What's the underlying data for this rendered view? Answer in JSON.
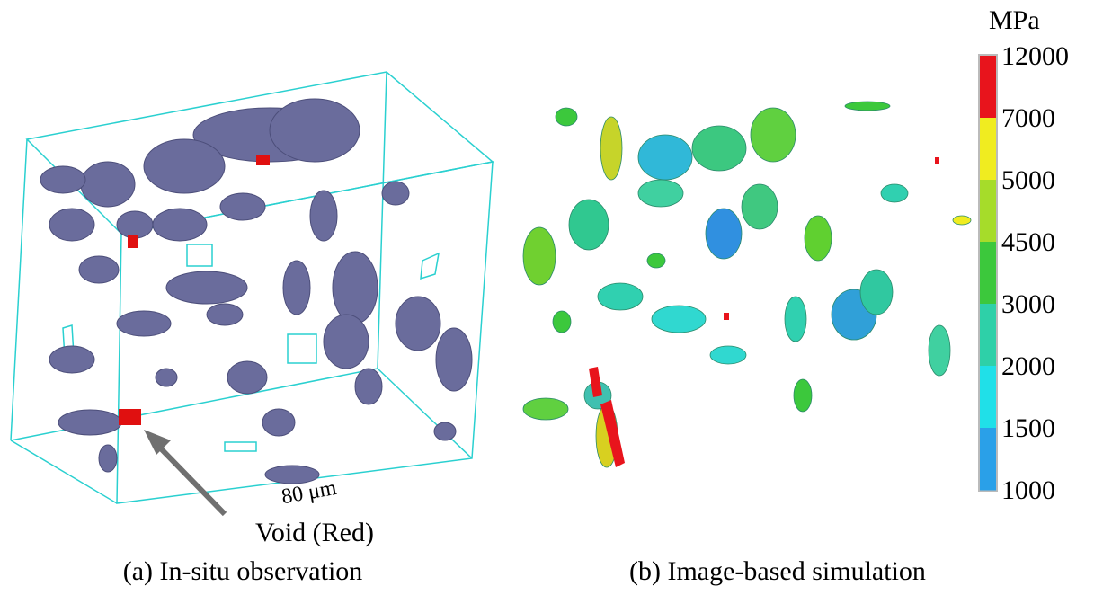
{
  "panels": [
    {
      "caption": "(a) In-situ observation",
      "scale_label": "80 μm",
      "annotation": "Void (Red)"
    },
    {
      "caption": "(b) Image-based simulation"
    }
  ],
  "colorbar": {
    "unit": "MPa",
    "labels": [
      12000,
      7000,
      5000,
      4500,
      3000,
      2000,
      1500,
      1000
    ],
    "colors": [
      "#e8141c",
      "#f0ec20",
      "#a6dc2a",
      "#3cc83c",
      "#2ed0a8",
      "#20e0e8",
      "#2aa0e8"
    ]
  }
}
